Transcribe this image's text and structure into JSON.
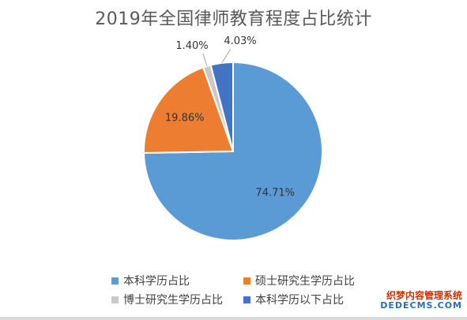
{
  "chart_data": {
    "type": "pie",
    "title": "2019年全国律师教育程度占比统计",
    "slices": [
      {
        "name": "本科学历占比",
        "value": 74.71,
        "label": "74.71%",
        "color": "#5b9bd5"
      },
      {
        "name": "硕士研究生学历占比",
        "value": 19.86,
        "label": "19.86%",
        "color": "#ed7d31"
      },
      {
        "name": "博士研究生学历占比",
        "value": 1.4,
        "label": "1.40%",
        "color": "#c9c9c9"
      },
      {
        "name": "本科学历以下占比",
        "value": 4.03,
        "label": "4.03%",
        "color": "#4472c4"
      }
    ],
    "legend_position": "bottom"
  },
  "watermark": {
    "line1": "织梦内容管理系统",
    "line2": "DEDECMS.COM"
  }
}
